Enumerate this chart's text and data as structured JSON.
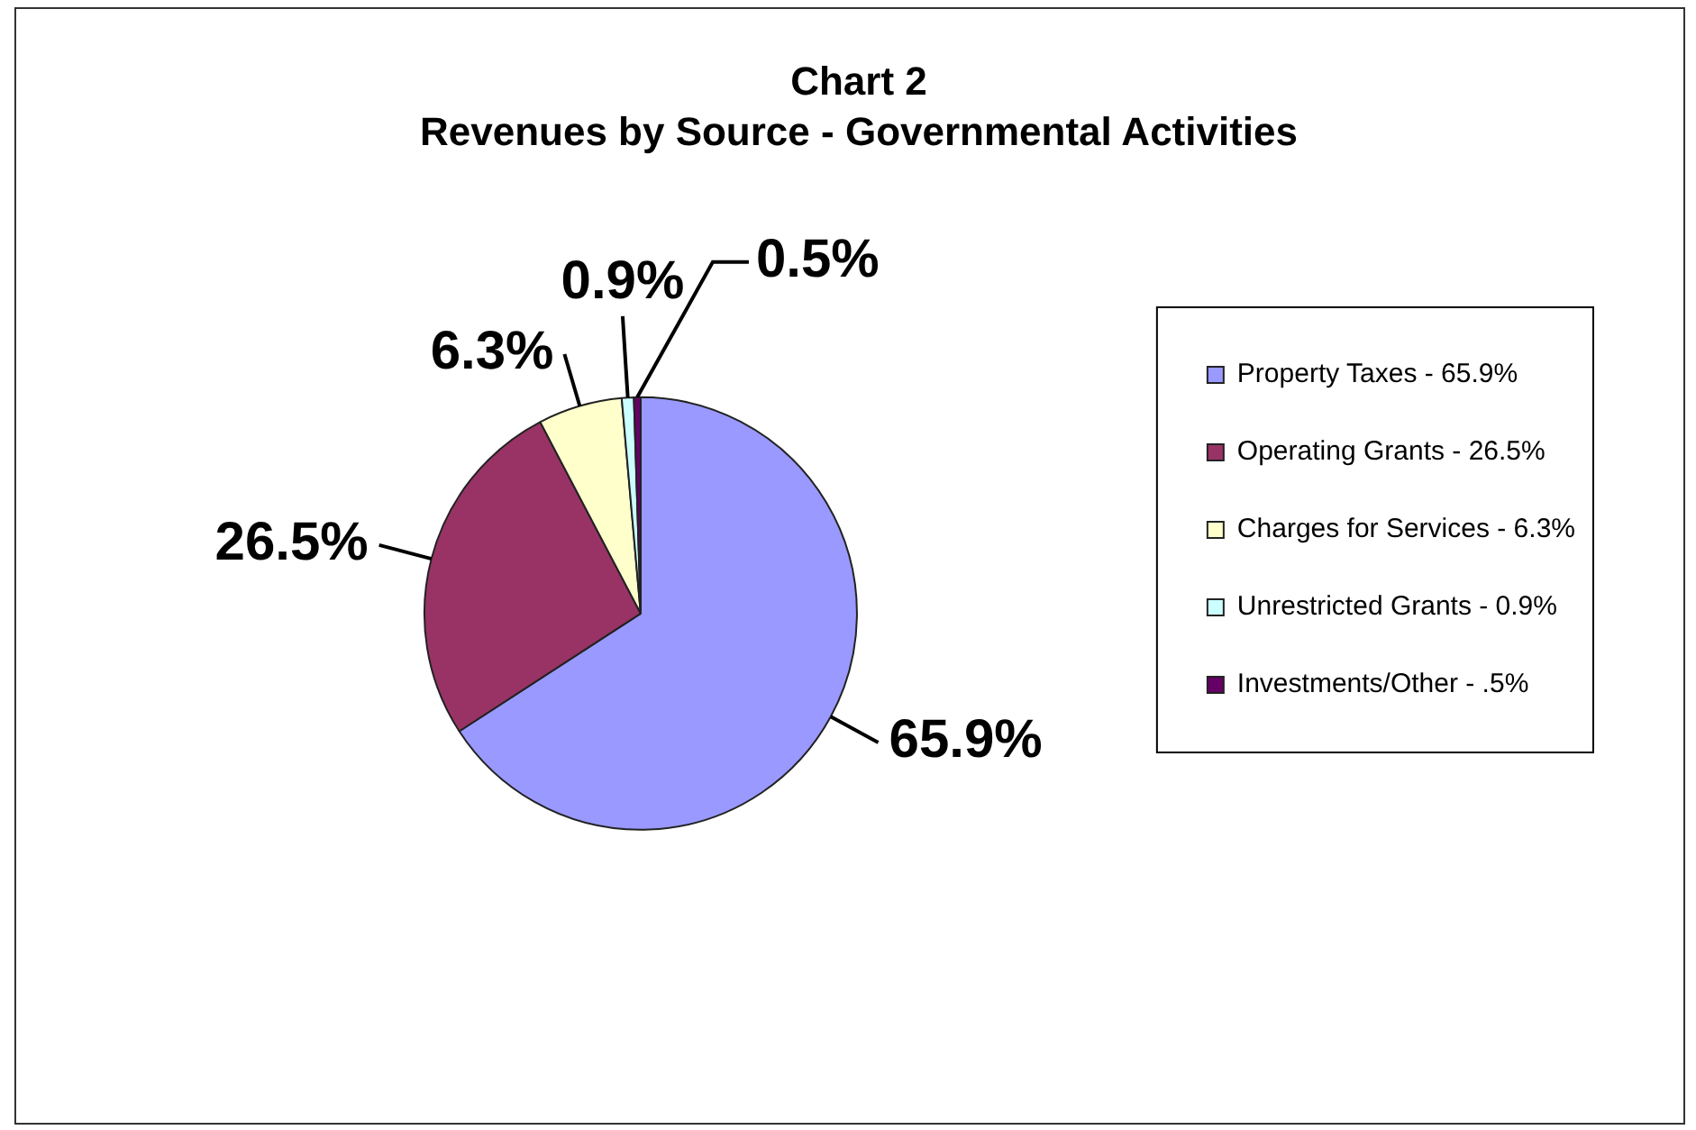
{
  "chart_data": {
    "type": "pie",
    "title": "Chart 2",
    "subtitle": "Revenues by Source - Governmental Activities",
    "categories": [
      "Property Taxes - 65.9%",
      "Operating Grants - 26.5%",
      "Charges for Services - 6.3%",
      "Unrestricted Grants - 0.9%",
      "Investments/Other - .5%"
    ],
    "values": [
      65.9,
      26.5,
      6.3,
      0.9,
      0.5
    ],
    "colors": [
      "#9999ff",
      "#993366",
      "#ffffcc",
      "#ccffff",
      "#660066"
    ],
    "value_labels": [
      "65.9%",
      "26.5%",
      "6.3%",
      "0.9%",
      "0.5%"
    ],
    "legend": "right"
  }
}
